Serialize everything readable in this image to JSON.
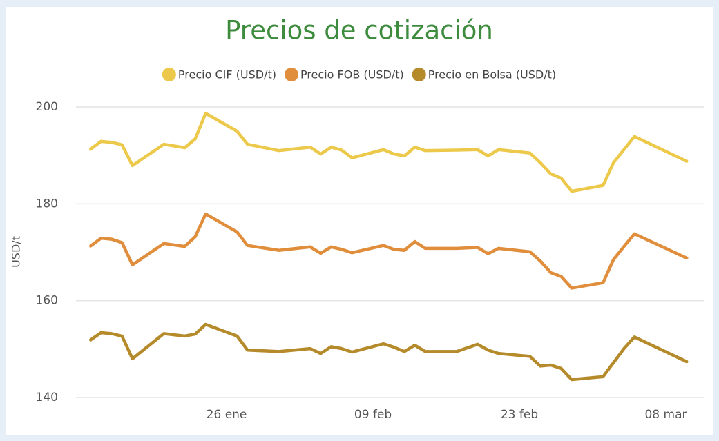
{
  "chart_data": {
    "type": "line",
    "title": "Precios de cotización",
    "y_label": "USD/t",
    "x": [
      13,
      14,
      15,
      16,
      17,
      20,
      22,
      23,
      24,
      27,
      28,
      31,
      34,
      35,
      36,
      37,
      38,
      41,
      42,
      43,
      44,
      45,
      48,
      50,
      51,
      52,
      55,
      56,
      57,
      58,
      59,
      62,
      63,
      64,
      65,
      70
    ],
    "series": [
      {
        "name": "Precio CIF (USD/t)",
        "color": "#ecc94b",
        "values": [
          191.3,
          192.9,
          192.7,
          192.2,
          187.9,
          192.3,
          191.6,
          193.4,
          198.7,
          195.0,
          192.3,
          191.0,
          191.7,
          190.3,
          191.7,
          191.1,
          189.5,
          191.2,
          190.3,
          189.9,
          191.7,
          191.0,
          191.1,
          191.2,
          189.9,
          191.2,
          190.5,
          188.5,
          186.2,
          185.3,
          182.6,
          183.8,
          188.5,
          191.2,
          193.9,
          188.8
        ]
      },
      {
        "name": "Precio FOB (USD/t)",
        "color": "#e08e3c",
        "values": [
          171.3,
          172.9,
          172.7,
          172.0,
          167.4,
          171.8,
          171.2,
          173.2,
          177.9,
          174.2,
          171.4,
          170.4,
          171.1,
          169.8,
          171.1,
          170.6,
          169.9,
          171.4,
          170.6,
          170.4,
          172.2,
          170.8,
          170.8,
          171.0,
          169.7,
          170.8,
          170.1,
          168.2,
          165.8,
          165.0,
          162.6,
          163.7,
          168.5,
          171.2,
          173.8,
          168.8
        ]
      },
      {
        "name": "Precio en Bolsa (USD/t)",
        "color": "#b58a2a",
        "values": [
          151.9,
          153.4,
          153.2,
          152.7,
          148.0,
          153.2,
          152.7,
          153.1,
          155.1,
          152.7,
          149.8,
          149.5,
          150.1,
          149.1,
          150.5,
          150.1,
          149.4,
          151.1,
          150.4,
          149.5,
          150.8,
          149.5,
          149.5,
          151.0,
          149.8,
          149.1,
          148.5,
          146.5,
          146.7,
          146.0,
          143.7,
          144.3,
          147.2,
          150.1,
          152.5,
          147.4
        ]
      }
    ],
    "xlim": [
      11.6,
      71.7
    ],
    "xticks": [
      {
        "value": 26,
        "label": "26 ene"
      },
      {
        "value": 40,
        "label": "09 feb"
      },
      {
        "value": 54,
        "label": "23 feb"
      },
      {
        "value": 68,
        "label": "08 mar"
      }
    ],
    "ylim": [
      140,
      202
    ],
    "yticks": [
      140,
      160,
      180,
      200
    ],
    "grid": true,
    "legend": "top"
  }
}
